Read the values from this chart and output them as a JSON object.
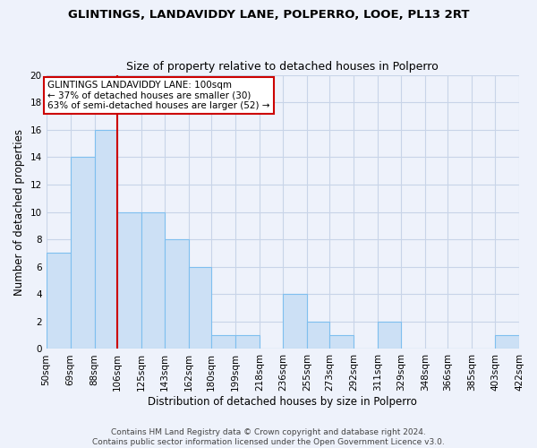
{
  "title": "GLINTINGS, LANDAVIDDY LANE, POLPERRO, LOOE, PL13 2RT",
  "subtitle": "Size of property relative to detached houses in Polperro",
  "xlabel": "Distribution of detached houses by size in Polperro",
  "ylabel": "Number of detached properties",
  "bins": [
    50,
    69,
    88,
    106,
    125,
    143,
    162,
    180,
    199,
    218,
    236,
    255,
    273,
    292,
    311,
    329,
    348,
    366,
    385,
    403,
    422
  ],
  "bin_labels": [
    "50sqm",
    "69sqm",
    "88sqm",
    "106sqm",
    "125sqm",
    "143sqm",
    "162sqm",
    "180sqm",
    "199sqm",
    "218sqm",
    "236sqm",
    "255sqm",
    "273sqm",
    "292sqm",
    "311sqm",
    "329sqm",
    "348sqm",
    "366sqm",
    "385sqm",
    "403sqm",
    "422sqm"
  ],
  "counts": [
    7,
    14,
    16,
    10,
    10,
    8,
    6,
    1,
    1,
    0,
    4,
    2,
    1,
    0,
    2,
    0,
    0,
    0,
    0,
    1
  ],
  "bar_color": "#cce0f5",
  "bar_edge_color": "#7fbfef",
  "vline_bin_index": 3,
  "vline_color": "#cc0000",
  "annotation_text": "GLINTINGS LANDAVIDDY LANE: 100sqm\n← 37% of detached houses are smaller (30)\n63% of semi-detached houses are larger (52) →",
  "annotation_box_color": "white",
  "annotation_box_edge": "#cc0000",
  "ylim": [
    0,
    20
  ],
  "yticks": [
    0,
    2,
    4,
    6,
    8,
    10,
    12,
    14,
    16,
    18,
    20
  ],
  "footer1": "Contains HM Land Registry data © Crown copyright and database right 2024.",
  "footer2": "Contains public sector information licensed under the Open Government Licence v3.0.",
  "background_color": "#eef2fb",
  "grid_color": "#c8d4e8"
}
